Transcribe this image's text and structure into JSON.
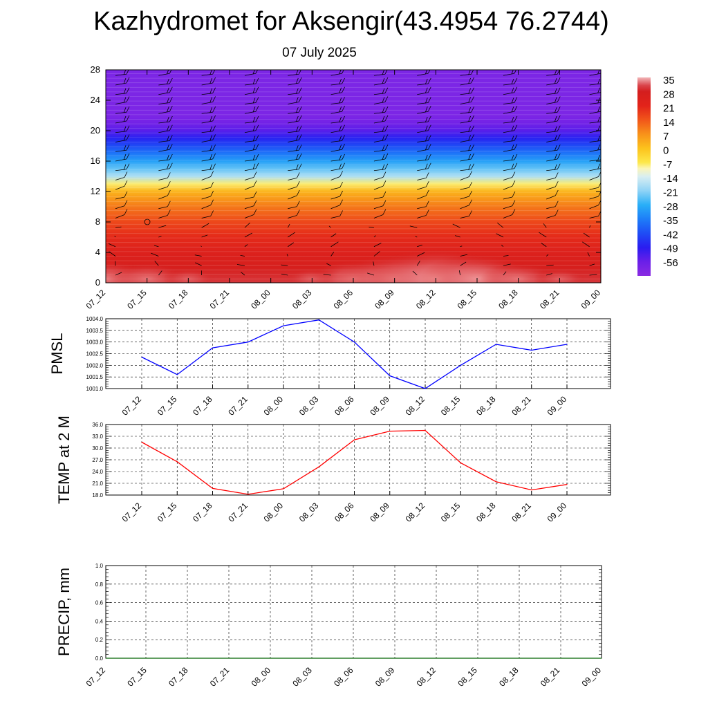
{
  "title": "Kazhydromet for Aksengir(43.4954 76.2744)",
  "subtitle": "07 July 2025",
  "time_labels": [
    "07_12",
    "07_15",
    "07_18",
    "07_21",
    "08_00",
    "08_03",
    "08_06",
    "08_09",
    "08_12",
    "08_15",
    "08_18",
    "08_21",
    "09_00"
  ],
  "chart_data": [
    {
      "type": "heatmap",
      "name": "temperature-height-section",
      "x": [
        "07_12",
        "07_15",
        "07_18",
        "07_21",
        "08_00",
        "08_03",
        "08_06",
        "08_09",
        "08_12",
        "08_15",
        "08_18",
        "08_21",
        "09_00"
      ],
      "y_ticks": [
        0,
        4,
        8,
        12,
        16,
        20,
        24,
        28
      ],
      "ylim": [
        0,
        28
      ],
      "profile_levels": [
        0,
        2,
        4,
        6,
        8,
        10,
        12,
        13,
        14,
        15,
        16,
        17,
        18,
        19,
        20,
        21,
        22,
        24,
        26,
        28
      ],
      "profile_values": [
        30,
        27,
        24,
        20,
        16,
        10,
        2,
        -8,
        -18,
        -24,
        -30,
        -36,
        -42,
        -48,
        -54,
        -58,
        -60,
        -60,
        -60,
        -60
      ],
      "surface_warm_anomaly": [
        4,
        3,
        1,
        0,
        0,
        1,
        4,
        6,
        8,
        6,
        3,
        1,
        0
      ],
      "colorbar": {
        "labels": [
          "35",
          "28",
          "21",
          "14",
          "7",
          "0",
          "-7",
          "-14",
          "-21",
          "-28",
          "-35",
          "-42",
          "-49",
          "-56"
        ],
        "stops": [
          {
            "v": -63,
            "c": "#8a2be2"
          },
          {
            "v": -56,
            "c": "#6a1fe8"
          },
          {
            "v": -49,
            "c": "#2a1cf0"
          },
          {
            "v": -42,
            "c": "#1f4cf5"
          },
          {
            "v": -35,
            "c": "#1e7df8"
          },
          {
            "v": -28,
            "c": "#28aef7"
          },
          {
            "v": -21,
            "c": "#8fd3f6"
          },
          {
            "v": -14,
            "c": "#d8eef2"
          },
          {
            "v": -10,
            "c": "#fbf5b8"
          },
          {
            "v": -7,
            "c": "#fde84a"
          },
          {
            "v": 0,
            "c": "#fcc21c"
          },
          {
            "v": 7,
            "c": "#f8921a"
          },
          {
            "v": 14,
            "c": "#f1561a"
          },
          {
            "v": 21,
            "c": "#e2231a"
          },
          {
            "v": 28,
            "c": "#d41e1e"
          },
          {
            "v": 31,
            "c": "#d9434a"
          },
          {
            "v": 35,
            "c": "#f2b6b8"
          }
        ]
      }
    },
    {
      "type": "line",
      "name": "pmsl",
      "ylabel": "PMSL",
      "x": [
        "07_12",
        "07_15",
        "07_18",
        "07_21",
        "08_00",
        "08_03",
        "08_06",
        "08_09",
        "08_12",
        "08_15",
        "08_18",
        "08_21",
        "09_00"
      ],
      "values": [
        1002.35,
        1001.6,
        1002.75,
        1003.0,
        1003.7,
        1003.95,
        1003.0,
        1001.55,
        1001.0,
        1002.0,
        1002.9,
        1002.65,
        1002.9
      ],
      "ylim": [
        1001.0,
        1004.0
      ],
      "tick_labels": [
        "1001.0",
        "1001.5",
        "1002.0",
        "1002.5",
        "1003.0",
        "1003.5",
        "1004.0"
      ],
      "color": "#0000ff"
    },
    {
      "type": "line",
      "name": "temp-2m",
      "ylabel": "TEMP at 2 M",
      "x": [
        "07_12",
        "07_15",
        "07_18",
        "07_21",
        "08_00",
        "08_03",
        "08_06",
        "08_09",
        "08_12",
        "08_15",
        "08_18",
        "08_21",
        "09_00"
      ],
      "values": [
        31.5,
        26.5,
        19.7,
        18.2,
        19.6,
        25.2,
        32.1,
        34.3,
        34.5,
        26.2,
        21.4,
        19.3,
        20.7
      ],
      "ylim": [
        18.0,
        36.0
      ],
      "tick_labels": [
        "18.0",
        "21.0",
        "24.0",
        "27.0",
        "30.0",
        "33.0",
        "36.0"
      ],
      "color": "#ff0000"
    },
    {
      "type": "line",
      "name": "precip",
      "ylabel": "PRECIP, mm",
      "x": [
        "07_12",
        "07_15",
        "07_18",
        "07_21",
        "08_00",
        "08_03",
        "08_06",
        "08_09",
        "08_12",
        "08_15",
        "08_18",
        "08_21",
        "09_00"
      ],
      "values": [
        0,
        0,
        0,
        0,
        0,
        0,
        0,
        0,
        0,
        0,
        0,
        0,
        0
      ],
      "ylim": [
        0.0,
        1.0
      ],
      "tick_labels": [
        "0.0",
        "0.2",
        "0.4",
        "0.6",
        "0.8",
        "1.0"
      ],
      "color": "#006400"
    }
  ]
}
